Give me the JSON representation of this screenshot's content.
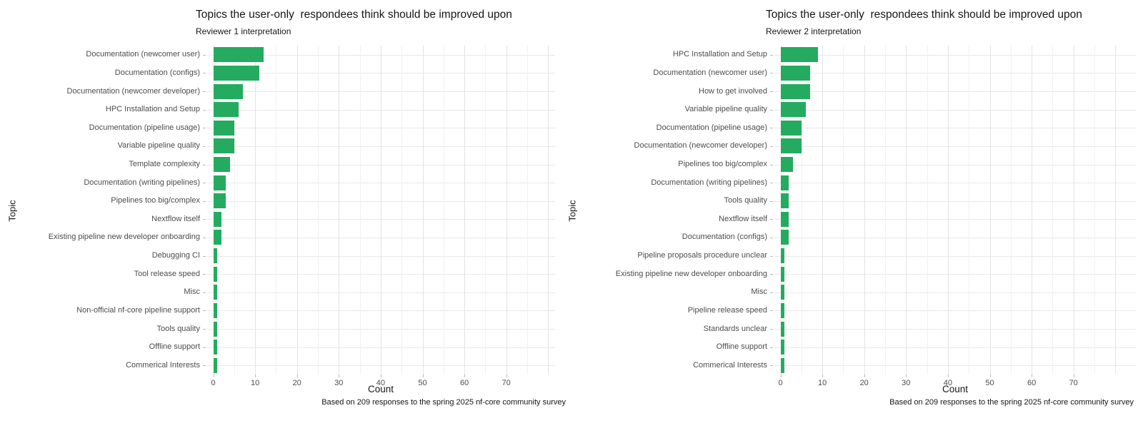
{
  "figure_title": "nf-core community survey improvement topics (user-only respondees)",
  "colors": {
    "bar_green": "#24ab60",
    "grid_major": "#e4e4e4",
    "grid_minor": "#f1f1f1",
    "text_dark": "#161616",
    "text_gray": "#4d4d4d"
  },
  "chart_data": [
    {
      "type": "bar",
      "orientation": "horizontal",
      "title": "Topics the user-only  respondees think should be improved upon",
      "subtitle": "Reviewer 1 interpretation",
      "xlabel": "Count",
      "ylabel": "Topic",
      "caption": "Based on 209 responses to the spring 2025 nf-core community survey",
      "legend": "none",
      "grid": true,
      "xlim": [
        0,
        82
      ],
      "xticks": [
        0,
        10,
        20,
        30,
        40,
        50,
        60,
        70
      ],
      "minor_tick_step": 5,
      "bar_color": "#24ab60",
      "categories": [
        "Documentation (newcomer user)",
        "Documentation (configs)",
        "Documentation (newcomer developer)",
        "HPC Installation and Setup",
        "Documentation (pipeline usage)",
        "Variable pipeline quality",
        "Template complexity",
        "Documentation (writing pipelines)",
        "Pipelines too big/complex",
        "Nextflow itself",
        "Existing pipeline new developer onboarding",
        "Debugging CI",
        "Tool release speed",
        "Misc",
        "Non-official nf-core pipeline support",
        "Tools quality",
        "Offline support",
        "Commerical Interests"
      ],
      "values": [
        12,
        11,
        7,
        6,
        5,
        5,
        4,
        3,
        3,
        2,
        2,
        1,
        1,
        1,
        1,
        1,
        1,
        1
      ]
    },
    {
      "type": "bar",
      "orientation": "horizontal",
      "title": "Topics the user-only  respondees think should be improved upon",
      "subtitle": "Reviewer 2 interpretation",
      "xlabel": "Count",
      "ylabel": "Topic",
      "caption": "Based on 209 responses to the spring 2025 nf-core community survey",
      "legend": "none",
      "grid": true,
      "xlim": [
        0,
        85
      ],
      "xticks": [
        0,
        10,
        20,
        30,
        40,
        50,
        60,
        70
      ],
      "minor_tick_step": 5,
      "bar_color": "#24ab60",
      "categories": [
        "HPC Installation and Setup",
        "Documentation (newcomer user)",
        "How to get involved",
        "Variable pipeline quality",
        "Documentation (pipeline usage)",
        "Documentation (newcomer developer)",
        "Pipelines too big/complex",
        "Documentation (writing pipelines)",
        "Tools quality",
        "Nextflow itself",
        "Documentation (configs)",
        "Pipeline proposals procedure unclear",
        "Existing pipeline new developer onboarding",
        "Misc",
        "Pipeline release speed",
        "Standards unclear",
        "Offline support",
        "Commerical Interests"
      ],
      "values": [
        9,
        7,
        7,
        6,
        5,
        5,
        3,
        2,
        2,
        2,
        2,
        1,
        1,
        1,
        1,
        1,
        1,
        1
      ]
    }
  ]
}
